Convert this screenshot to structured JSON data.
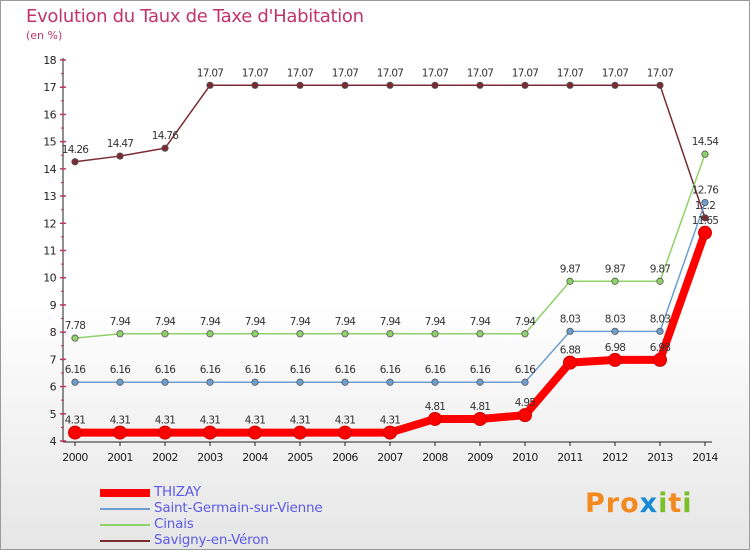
{
  "title": "Evolution du Taux de Taxe d'Habitation",
  "unit": "(en %)",
  "logo": {
    "p1": "Pro",
    "x": "x",
    "i": "i",
    "t": "t",
    "i2": "i"
  },
  "chart_data": {
    "type": "line",
    "x": [
      "2000",
      "2001",
      "2002",
      "2003",
      "2004",
      "2005",
      "2006",
      "2007",
      "2008",
      "2009",
      "2010",
      "2011",
      "2012",
      "2013",
      "2014"
    ],
    "ylim": [
      4,
      18
    ],
    "yticks": [
      4,
      5,
      6,
      7,
      8,
      9,
      10,
      11,
      12,
      13,
      14,
      15,
      16,
      17,
      18
    ],
    "grid": false,
    "legend_position": "bottom-left",
    "series": [
      {
        "name": "Savigny-en-Véron",
        "color": "#7a2b34",
        "values": [
          14.26,
          14.47,
          14.76,
          17.07,
          17.07,
          17.07,
          17.07,
          17.07,
          17.07,
          17.07,
          17.07,
          17.07,
          17.07,
          17.07,
          12.2
        ],
        "labels": [
          "14.26",
          "14.47",
          "14.76",
          "17.07",
          "17.07",
          "17.07",
          "17.07",
          "17.07",
          "17.07",
          "17.07",
          "17.07",
          "17.07",
          "17.07",
          "17.07",
          "12.2"
        ]
      },
      {
        "name": "Cinais",
        "color": "#8fd16a",
        "values": [
          7.78,
          7.94,
          7.94,
          7.94,
          7.94,
          7.94,
          7.94,
          7.94,
          7.94,
          7.94,
          7.94,
          9.87,
          9.87,
          9.87,
          14.54
        ],
        "labels": [
          "7.78",
          "7.94",
          "7.94",
          "7.94",
          "7.94",
          "7.94",
          "7.94",
          "7.94",
          "7.94",
          "7.94",
          "7.94",
          "9.87",
          "9.87",
          "9.87",
          "14.54"
        ]
      },
      {
        "name": "Saint-Germain-sur-Vienne",
        "color": "#6e9ed0",
        "values": [
          6.16,
          6.16,
          6.16,
          6.16,
          6.16,
          6.16,
          6.16,
          6.16,
          6.16,
          6.16,
          6.16,
          8.03,
          8.03,
          8.03,
          12.76
        ],
        "labels": [
          "6.16",
          "6.16",
          "6.16",
          "6.16",
          "6.16",
          "6.16",
          "6.16",
          "6.16",
          "6.16",
          "6.16",
          "6.16",
          "8.03",
          "8.03",
          "8.03",
          "12.76"
        ]
      },
      {
        "name": "THIZAY",
        "color": "#ff0000",
        "values": [
          4.31,
          4.31,
          4.31,
          4.31,
          4.31,
          4.31,
          4.31,
          4.31,
          4.81,
          4.81,
          4.95,
          6.88,
          6.98,
          6.98,
          11.65
        ],
        "labels": [
          "4.31",
          "4.31",
          "4.31",
          "4.31",
          "4.31",
          "4.31",
          "4.31",
          "4.31",
          "4.81",
          "4.81",
          "4.95",
          "6.88",
          "6.98",
          "6.98",
          "11.65"
        ]
      }
    ],
    "legend": [
      {
        "name": "THIZAY",
        "color": "#ff0000"
      },
      {
        "name": "Saint-Germain-sur-Vienne",
        "color": "#6e9ed0"
      },
      {
        "name": "Cinais",
        "color": "#8fd16a"
      },
      {
        "name": "Savigny-en-Véron",
        "color": "#7a2b34"
      }
    ]
  }
}
